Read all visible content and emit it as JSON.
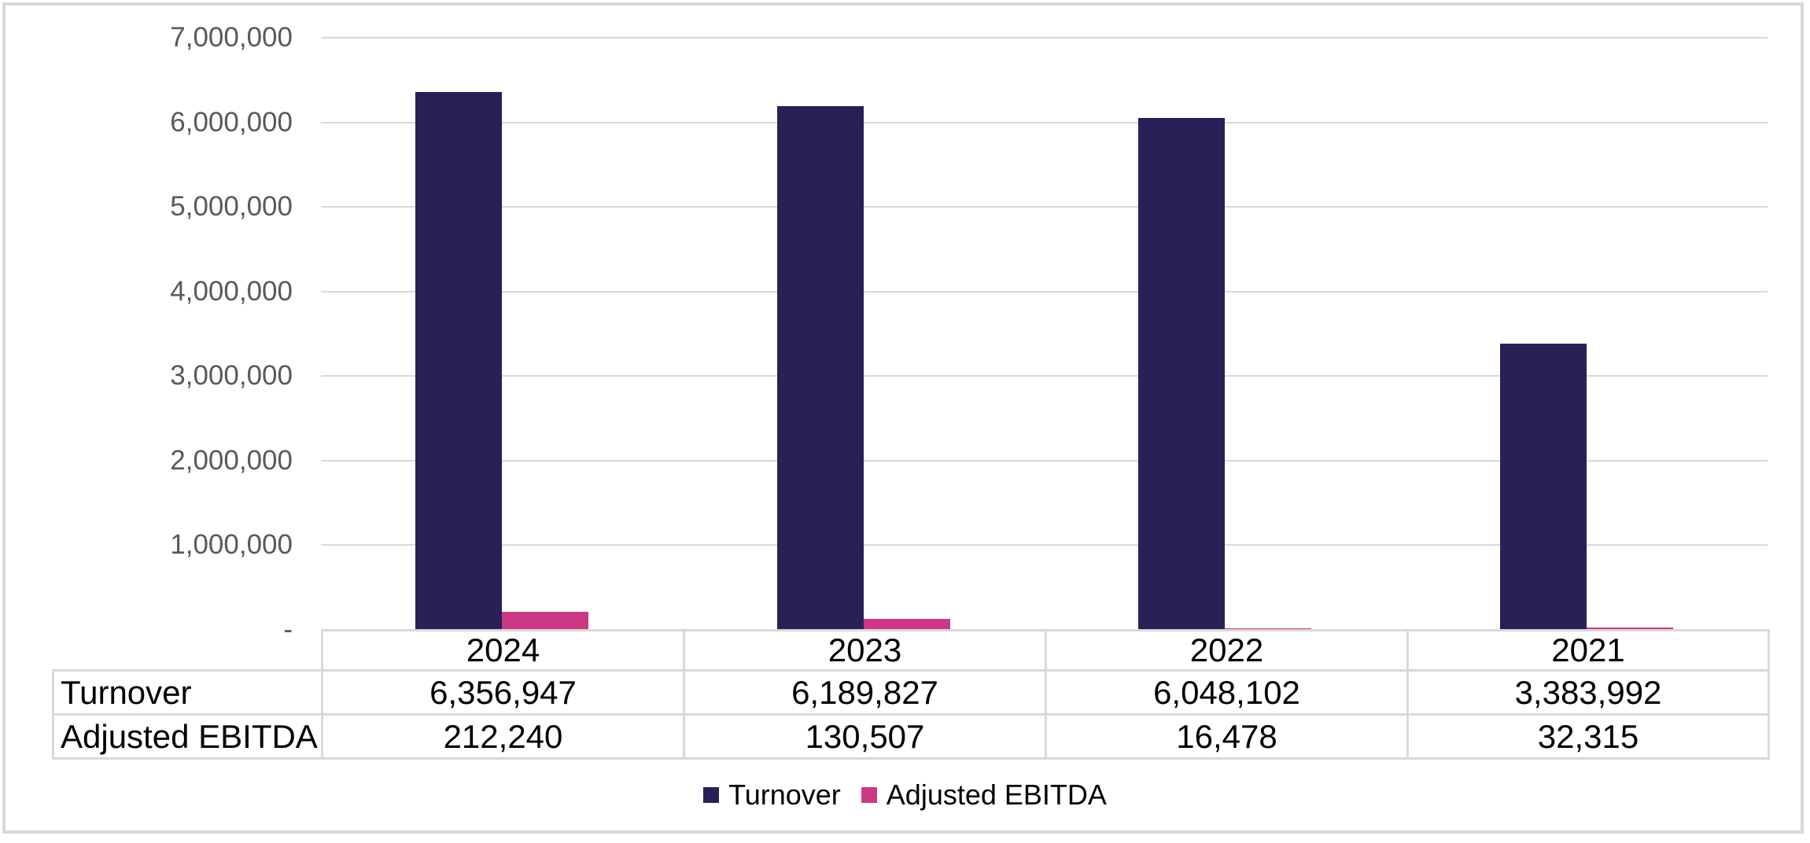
{
  "chart_data": {
    "type": "bar",
    "title": "",
    "categories": [
      "2024",
      "2023",
      "2022",
      "2021"
    ],
    "series": [
      {
        "name": "Turnover",
        "color": "#282157",
        "values": [
          6356947,
          6189827,
          6048102,
          3383992
        ],
        "value_labels": [
          "6,356,947",
          "6,189,827",
          "6,048,102",
          "3,383,992"
        ]
      },
      {
        "name": "Adjusted EBITDA",
        "color": "#CB3984",
        "values": [
          212240,
          130507,
          16478,
          32315
        ],
        "value_labels": [
          "212,240",
          "130,507",
          "16,478",
          "32,315"
        ]
      }
    ],
    "xlabel": "",
    "ylabel": "",
    "ylim": [
      0,
      7000000
    ],
    "yticks": [
      {
        "value": 7000000,
        "label": "7,000,000"
      },
      {
        "value": 6000000,
        "label": "6,000,000"
      },
      {
        "value": 5000000,
        "label": "5,000,000"
      },
      {
        "value": 4000000,
        "label": "4,000,000"
      },
      {
        "value": 3000000,
        "label": "3,000,000"
      },
      {
        "value": 2000000,
        "label": "2,000,000"
      },
      {
        "value": 1000000,
        "label": "1,000,000"
      },
      {
        "value": 0,
        "label": "-"
      }
    ],
    "grid": true,
    "legend_position": "bottom",
    "has_data_table": true
  },
  "legend": {
    "items": [
      {
        "label": "Turnover",
        "color": "#282157"
      },
      {
        "label": "Adjusted EBITDA",
        "color": "#CB3984"
      }
    ]
  },
  "colors": {
    "background": "#FFFFFF",
    "frame_border": "#D8D8D8",
    "gridline": "#D9D9D9",
    "axis_text": "#595959",
    "table_border": "#D9D9D9",
    "table_text": "#000000",
    "turnover": "#282157",
    "adjusted_ebitda": "#CB3984"
  }
}
